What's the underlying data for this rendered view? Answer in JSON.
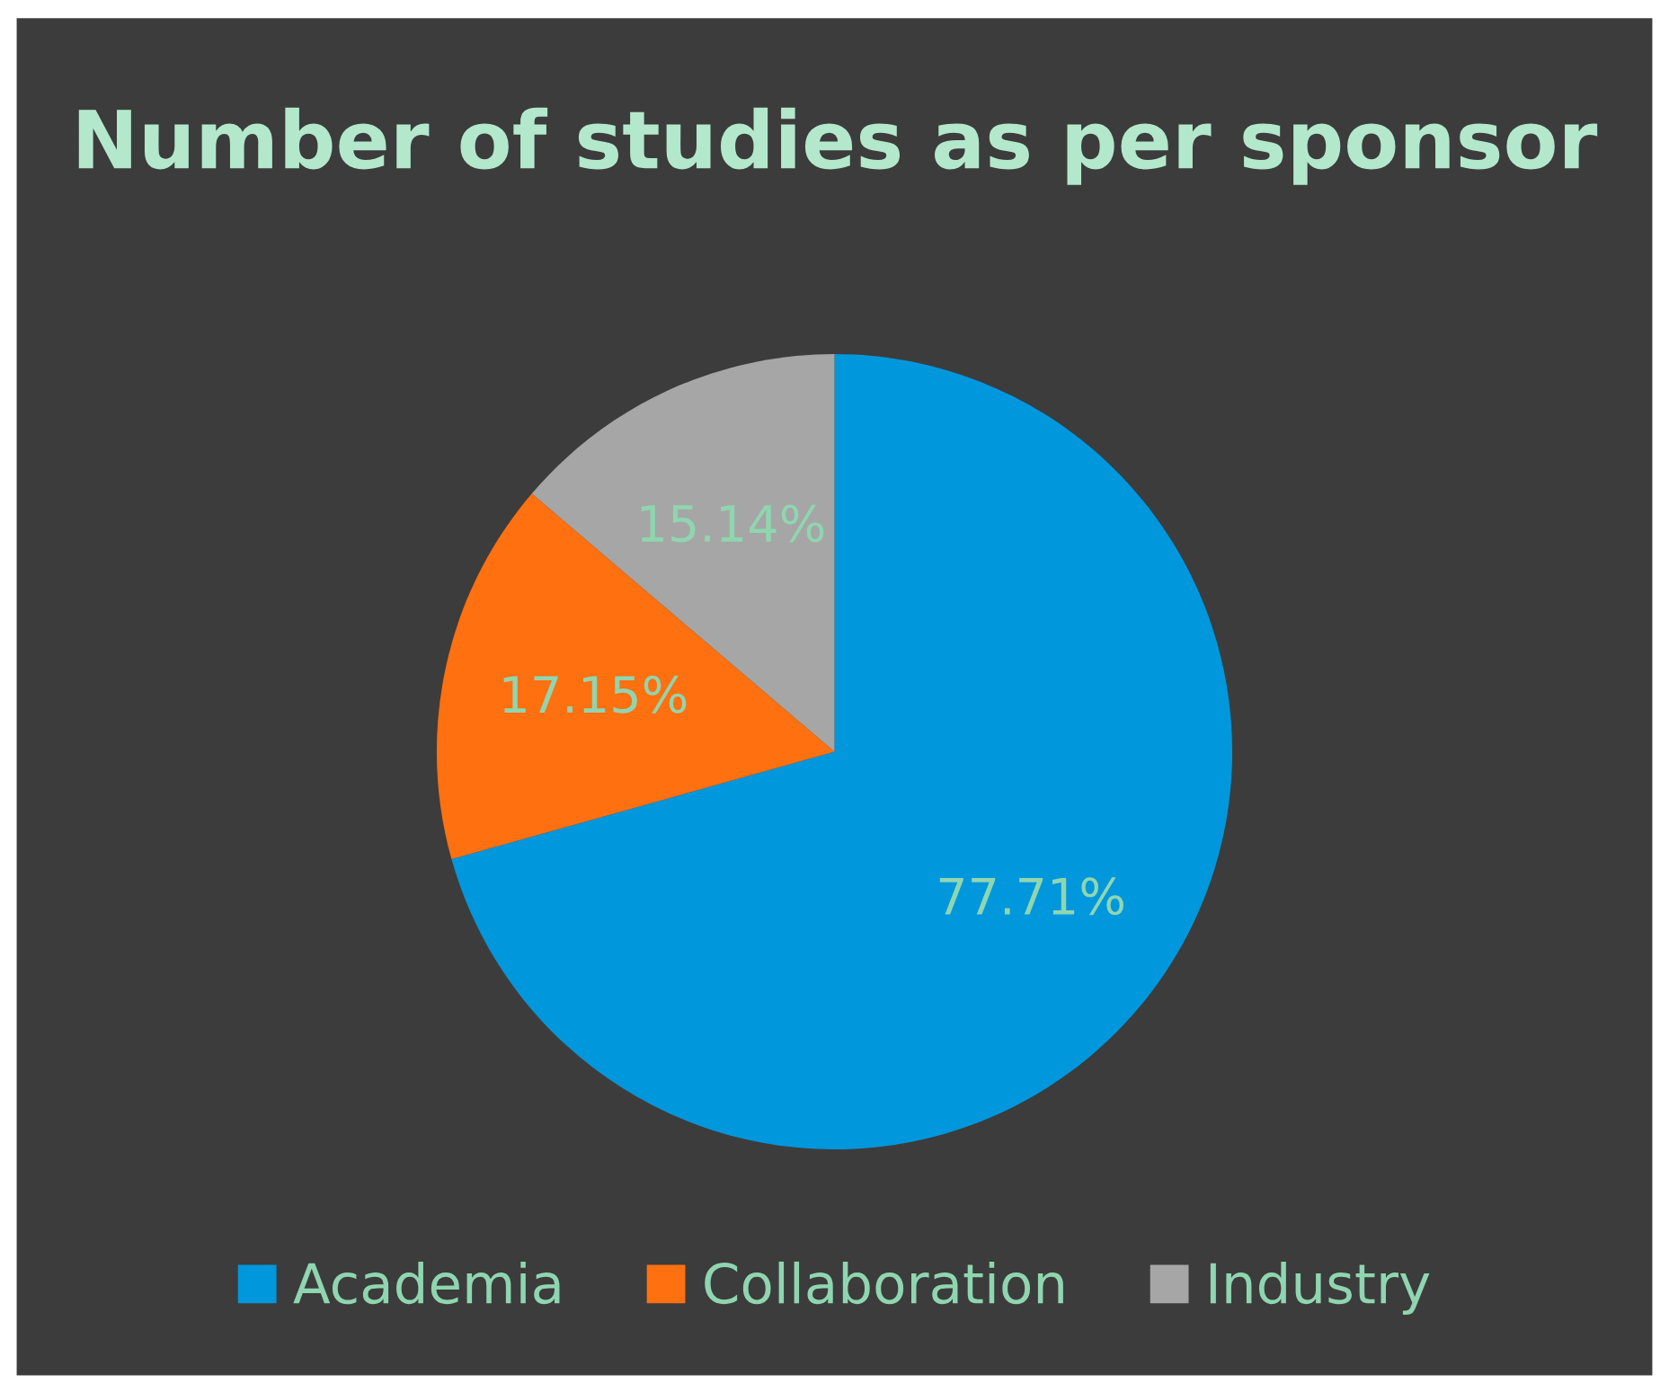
{
  "chart_data": {
    "type": "pie",
    "title": "Number of studies as per sponsor",
    "categories": [
      "Academia",
      "Collaboration",
      "Industry"
    ],
    "values": [
      77.71,
      17.15,
      15.14
    ],
    "value_labels": [
      "77.71%",
      "17.15%",
      "15.14%"
    ],
    "colors": [
      "#0097dc",
      "#ff7010",
      "#a6a6a6"
    ],
    "legend": "bottom"
  }
}
